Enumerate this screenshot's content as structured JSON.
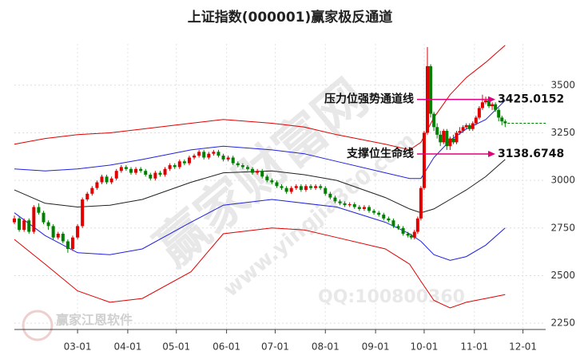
{
  "chart_data": {
    "type": "candlestick",
    "title": "上证指数(000001)赢家极反通道",
    "xlim": [
      21,
      349
    ],
    "xticks": [
      {
        "value": 60,
        "label": "03-01"
      },
      {
        "value": 91,
        "label": "04-01"
      },
      {
        "value": 121,
        "label": "05-01"
      },
      {
        "value": 152,
        "label": "06-01"
      },
      {
        "value": 182,
        "label": "07-01"
      },
      {
        "value": 213,
        "label": "08-01"
      },
      {
        "value": 244,
        "label": "09-01"
      },
      {
        "value": 274,
        "label": "10-01"
      },
      {
        "value": 305,
        "label": "11-01"
      },
      {
        "value": 335,
        "label": "12-01"
      }
    ],
    "ylim": [
      2217,
      3717
    ],
    "yticks": [
      2250,
      2500,
      2750,
      3000,
      3250,
      3500
    ],
    "grid": true,
    "up_color": "#e00000",
    "down_color": "#008000",
    "x": [
      21,
      24,
      27,
      30,
      33,
      36,
      39,
      42,
      45,
      48,
      51,
      54,
      57,
      60,
      63,
      66,
      69,
      72,
      75,
      78,
      81,
      84,
      87,
      90,
      93,
      96,
      99,
      102,
      105,
      108,
      111,
      114,
      117,
      120,
      123,
      126,
      129,
      132,
      135,
      138,
      141,
      144,
      147,
      150,
      153,
      156,
      159,
      162,
      165,
      168,
      171,
      174,
      177,
      180,
      183,
      186,
      189,
      192,
      195,
      198,
      201,
      204,
      207,
      210,
      213,
      216,
      219,
      222,
      225,
      228,
      231,
      234,
      237,
      240,
      243,
      246,
      249,
      252,
      255,
      258,
      261,
      264,
      266,
      268,
      270,
      272,
      274,
      276,
      278,
      280,
      282,
      284,
      286,
      288,
      290,
      292,
      294,
      296,
      298,
      300,
      302,
      304,
      306,
      308,
      310,
      312,
      314,
      316,
      318,
      320,
      322,
      324
    ],
    "open": [
      2780,
      2800,
      2740,
      2790,
      2730,
      2860,
      2830,
      2780,
      2760,
      2700,
      2720,
      2680,
      2640,
      2700,
      2760,
      2900,
      2930,
      2960,
      2990,
      3020,
      2990,
      3010,
      3050,
      3070,
      3060,
      3040,
      3060,
      3050,
      3030,
      3010,
      3040,
      3030,
      3060,
      3080,
      3070,
      3100,
      3090,
      3120,
      3130,
      3150,
      3120,
      3140,
      3150,
      3130,
      3110,
      3120,
      3090,
      3080,
      3070,
      3060,
      3040,
      3050,
      3020,
      3000,
      2990,
      2970,
      2960,
      2940,
      2960,
      2970,
      2950,
      2970,
      2960,
      2970,
      2960,
      2930,
      2910,
      2890,
      2880,
      2870,
      2875,
      2860,
      2850,
      2860,
      2840,
      2830,
      2820,
      2800,
      2790,
      2760,
      2750,
      2720,
      2710,
      2700,
      2730,
      2800,
      2960,
      3250,
      3600,
      3350,
      3280,
      3240,
      3200,
      3260,
      3180,
      3220,
      3200,
      3250,
      3260,
      3280,
      3290,
      3270,
      3300,
      3330,
      3380,
      3410,
      3420,
      3390,
      3400,
      3370,
      3330,
      3310
    ],
    "close": [
      2800,
      2740,
      2790,
      2730,
      2860,
      2830,
      2780,
      2760,
      2700,
      2720,
      2680,
      2640,
      2700,
      2760,
      2900,
      2930,
      2960,
      2990,
      3020,
      2990,
      3010,
      3050,
      3070,
      3060,
      3040,
      3060,
      3050,
      3030,
      3010,
      3040,
      3030,
      3060,
      3080,
      3070,
      3100,
      3090,
      3120,
      3130,
      3150,
      3120,
      3140,
      3150,
      3130,
      3110,
      3120,
      3090,
      3080,
      3070,
      3060,
      3040,
      3050,
      3020,
      3000,
      2990,
      2970,
      2960,
      2940,
      2960,
      2970,
      2950,
      2970,
      2960,
      2970,
      2960,
      2930,
      2910,
      2890,
      2880,
      2870,
      2875,
      2860,
      2850,
      2860,
      2840,
      2830,
      2820,
      2800,
      2790,
      2760,
      2750,
      2720,
      2710,
      2700,
      2730,
      2800,
      2960,
      3250,
      3600,
      3350,
      3280,
      3240,
      3200,
      3260,
      3180,
      3220,
      3200,
      3250,
      3260,
      3280,
      3290,
      3270,
      3300,
      3330,
      3380,
      3410,
      3420,
      3390,
      3400,
      3370,
      3330,
      3310,
      3300
    ],
    "high": [
      2815,
      2810,
      2800,
      2800,
      2870,
      2880,
      2840,
      2790,
      2770,
      2730,
      2730,
      2690,
      2710,
      2770,
      2910,
      2940,
      2970,
      3000,
      3030,
      3030,
      3020,
      3060,
      3080,
      3080,
      3070,
      3070,
      3070,
      3060,
      3040,
      3050,
      3050,
      3070,
      3090,
      3090,
      3110,
      3110,
      3130,
      3140,
      3160,
      3160,
      3150,
      3160,
      3160,
      3140,
      3130,
      3130,
      3100,
      3090,
      3080,
      3070,
      3060,
      3060,
      3030,
      3010,
      3000,
      2980,
      2970,
      2970,
      2980,
      2980,
      2980,
      2980,
      2980,
      2980,
      2970,
      2940,
      2920,
      2900,
      2890,
      2885,
      2885,
      2870,
      2870,
      2870,
      2850,
      2840,
      2830,
      2810,
      2800,
      2770,
      2760,
      2730,
      2720,
      2740,
      2810,
      2970,
      3260,
      3700,
      3610,
      3360,
      3300,
      3260,
      3270,
      3270,
      3230,
      3240,
      3260,
      3280,
      3290,
      3300,
      3300,
      3310,
      3340,
      3390,
      3450,
      3440,
      3430,
      3410,
      3410,
      3380,
      3340,
      3320
    ],
    "low": [
      2770,
      2730,
      2730,
      2720,
      2720,
      2820,
      2770,
      2740,
      2690,
      2690,
      2670,
      2620,
      2630,
      2690,
      2750,
      2890,
      2920,
      2950,
      2980,
      2980,
      2980,
      3000,
      3040,
      3050,
      3030,
      3030,
      3040,
      3020,
      3000,
      3000,
      3020,
      3020,
      3050,
      3060,
      3060,
      3080,
      3080,
      3110,
      3120,
      3110,
      3110,
      3130,
      3120,
      3100,
      3100,
      3080,
      3070,
      3060,
      3050,
      3030,
      3030,
      3010,
      2990,
      2980,
      2960,
      2950,
      2930,
      2930,
      2950,
      2940,
      2940,
      2950,
      2950,
      2950,
      2920,
      2900,
      2880,
      2870,
      2860,
      2860,
      2850,
      2840,
      2840,
      2830,
      2820,
      2810,
      2790,
      2780,
      2750,
      2740,
      2710,
      2700,
      2690,
      2690,
      2720,
      2790,
      2950,
      3240,
      3330,
      3260,
      3220,
      3180,
      3190,
      3160,
      3160,
      3190,
      3190,
      3240,
      3250,
      3270,
      3260,
      3260,
      3290,
      3320,
      3370,
      3400,
      3380,
      3370,
      3360,
      3310,
      3290,
      3280
    ],
    "band_x": [
      21,
      40,
      60,
      80,
      100,
      130,
      150,
      180,
      200,
      220,
      250,
      265,
      272,
      280,
      290,
      300,
      312,
      324
    ],
    "bands": [
      {
        "color": "#e00000",
        "values": [
          3190,
          3220,
          3240,
          3250,
          3270,
          3300,
          3320,
          3300,
          3280,
          3240,
          3190,
          3160,
          3200,
          3330,
          3450,
          3540,
          3620,
          3710
        ]
      },
      {
        "color": "#2020e0",
        "values": [
          3060,
          3050,
          3060,
          3080,
          3110,
          3160,
          3180,
          3160,
          3140,
          3100,
          3040,
          3010,
          3010,
          3120,
          3210,
          3270,
          3320,
          3420
        ]
      },
      {
        "color": "#202020",
        "values": [
          2950,
          2880,
          2860,
          2870,
          2900,
          2990,
          3040,
          3050,
          3030,
          3000,
          2910,
          2850,
          2830,
          2850,
          2900,
          2950,
          3020,
          3110
        ]
      },
      {
        "color": "#2020e0",
        "values": [
          2830,
          2710,
          2620,
          2610,
          2640,
          2780,
          2870,
          2900,
          2880,
          2860,
          2780,
          2720,
          2680,
          2610,
          2580,
          2600,
          2660,
          2750
        ]
      },
      {
        "color": "#e00000",
        "values": [
          2690,
          2560,
          2420,
          2360,
          2380,
          2520,
          2720,
          2750,
          2740,
          2700,
          2640,
          2560,
          2470,
          2370,
          2330,
          2360,
          2380,
          2400
        ]
      }
    ],
    "annotations": [
      {
        "text": "压力位强势通道线",
        "value": 3425.0152
      },
      {
        "text": "支撑位生命线",
        "value": 3138.6748
      }
    ],
    "watermarks": [
      "赢家财富网",
      "www.yingjia360.com",
      "QQ:100800360",
      "赢家江恩软件"
    ]
  }
}
